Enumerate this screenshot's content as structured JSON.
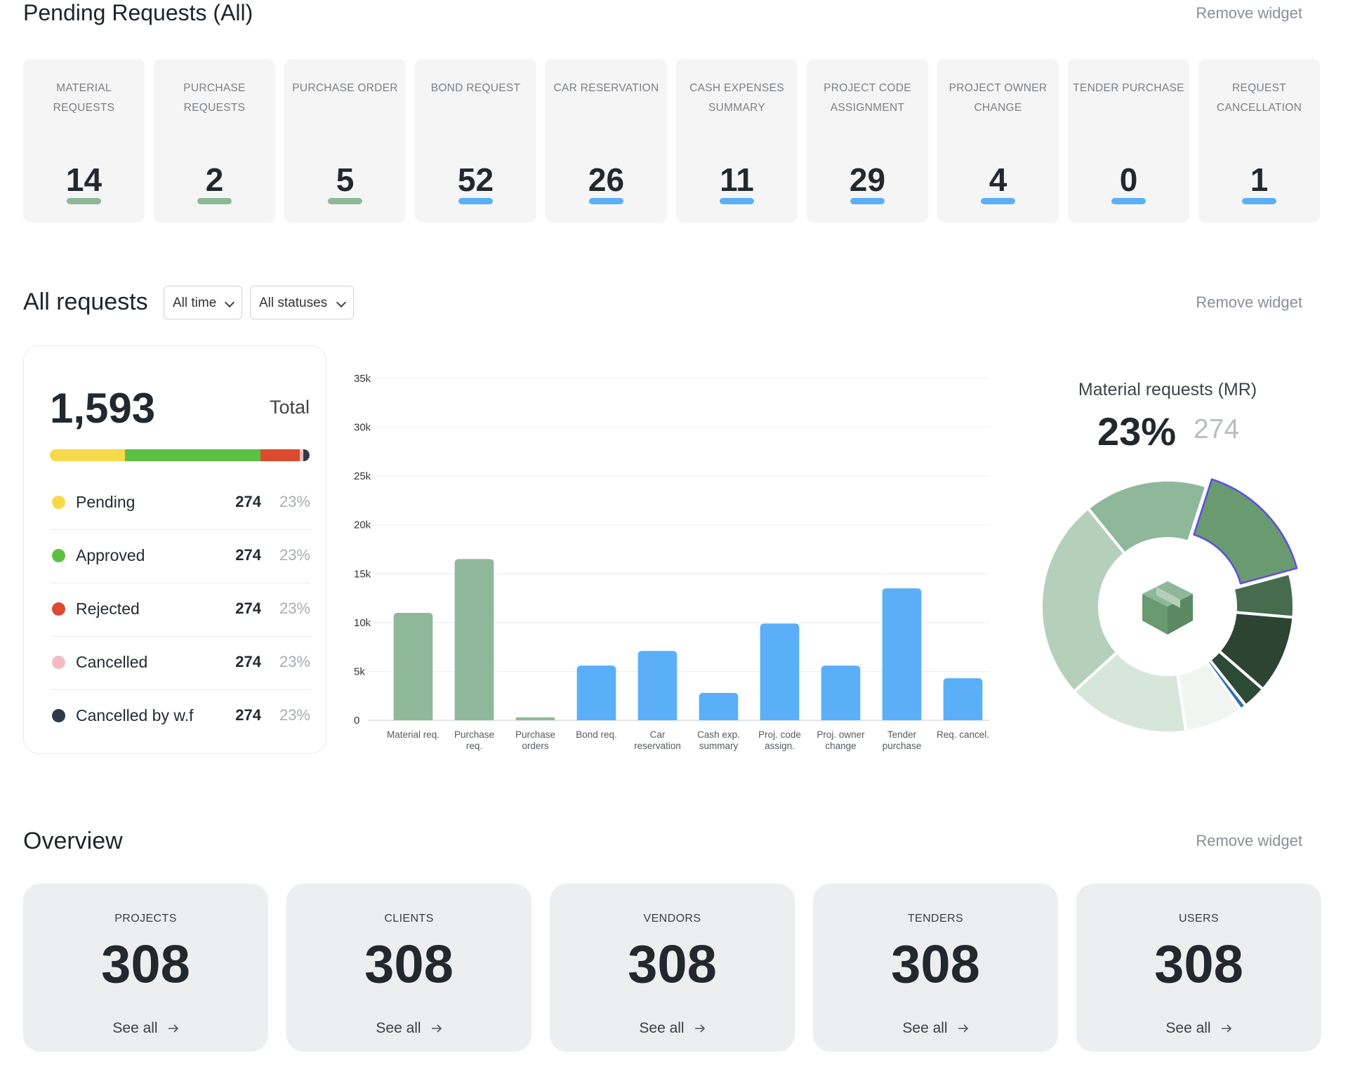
{
  "pending": {
    "title": "Pending Requests (All)",
    "remove": "Remove widget",
    "cards": [
      {
        "label": "MATERIAL REQUESTS",
        "value": 14
      },
      {
        "label": "PURCHASE REQUESTS",
        "value": 2
      },
      {
        "label": "PURCHASE ORDER",
        "value": 5
      },
      {
        "label": "BOND REQUEST",
        "value": 52
      },
      {
        "label": "CAR RESERVATION",
        "value": 26
      },
      {
        "label": "CASH EXPENSES SUMMARY",
        "value": 11
      },
      {
        "label": "PROJECT CODE ASSIGNMENT",
        "value": 29
      },
      {
        "label": "PROJECT OWNER CHANGE",
        "value": 4
      },
      {
        "label": "TENDER PURCHASE",
        "value": 0
      },
      {
        "label": "REQUEST CANCELLATION",
        "value": 1
      }
    ]
  },
  "all_requests": {
    "title": "All requests",
    "filters": [
      "All time",
      "All statuses"
    ],
    "remove": "Remove widget",
    "summary": {
      "total": "1,593",
      "total_label": "Total",
      "statuses": [
        {
          "name": "Pending",
          "color": "#f7d94c",
          "count": 274,
          "percent": "23%"
        },
        {
          "name": "Approved",
          "color": "#5cc043",
          "count": 274,
          "percent": "23%"
        },
        {
          "name": "Rejected",
          "color": "#db4b2f",
          "count": 274,
          "percent": "23%"
        },
        {
          "name": "Cancelled",
          "color": "#f2bcc0",
          "count": 274,
          "percent": "23%"
        },
        {
          "name": "Cancelled by w.f",
          "color": "#2f3a48",
          "count": 274,
          "percent": "23%"
        }
      ]
    }
  },
  "chart_data": [
    {
      "type": "bar",
      "categories": [
        "Material req.",
        "Purchase req.",
        "Purchase orders",
        "Bond req.",
        "Car reservation",
        "Cash exp. summary",
        "Proj. code assign.",
        "Proj. owner change",
        "Tender purchase",
        "Req. cancel."
      ],
      "values": [
        11000,
        16500,
        300,
        5600,
        7100,
        2800,
        9900,
        5600,
        13500,
        4300
      ],
      "colors": [
        "#8fb89a",
        "#8fb89a",
        "#8fb89a",
        "#5aaff8",
        "#5aaff8",
        "#5aaff8",
        "#5aaff8",
        "#5aaff8",
        "#5aaff8",
        "#5aaff8"
      ],
      "ylim": [
        0,
        35000
      ],
      "yticks": [
        0,
        {
          "value": 5000,
          "label": "5k"
        },
        {
          "value": 10000,
          "label": "10k"
        },
        {
          "value": 15000,
          "label": "15k"
        },
        {
          "value": 20000,
          "label": "20k"
        },
        {
          "value": 25000,
          "label": "25k"
        },
        {
          "value": 30000,
          "label": "30k"
        },
        {
          "value": 35000,
          "label": "35k"
        }
      ],
      "grid": true
    },
    {
      "type": "pie",
      "donut": true,
      "title": "Material requests (MR)",
      "highlight": {
        "index": 1,
        "percent": "23%",
        "count": 274
      },
      "values": [
        15.8,
        15.8,
        5.6,
        10,
        3,
        0.8,
        7.5,
        15.6,
        25.9
      ],
      "colors": [
        "#8fb89a",
        "#6a9a70",
        "#466b4d",
        "#2e4433",
        "#2d4a37",
        "#2f6fae",
        "#f0f5f1",
        "#d6e6da",
        "#b4d0bb"
      ]
    }
  ],
  "overview": {
    "title": "Overview",
    "remove": "Remove widget",
    "link": "See all",
    "cards": [
      {
        "label": "PROJECTS",
        "value": 308
      },
      {
        "label": "CLIENTS",
        "value": 308
      },
      {
        "label": "VENDORS",
        "value": 308
      },
      {
        "label": "TENDERS",
        "value": 308
      },
      {
        "label": "USERS",
        "value": 308
      }
    ]
  }
}
